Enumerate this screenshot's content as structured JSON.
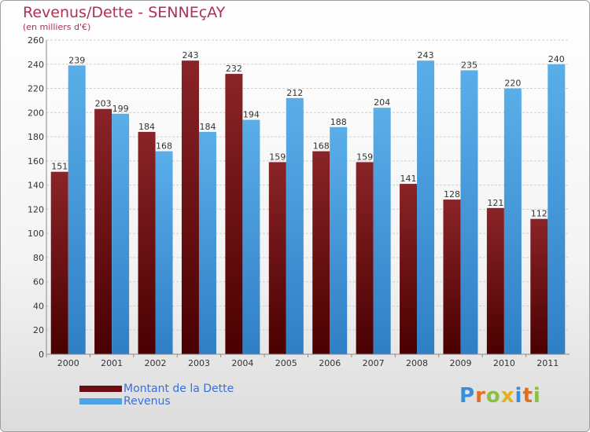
{
  "header": {
    "title": "Revenus/Dette - SENNEçAY",
    "subtitle": "(en milliers d'€)"
  },
  "chart_data": {
    "type": "bar",
    "title": "Revenus/Dette - SENNEçAY",
    "subtitle": "(en milliers d'€)",
    "categories": [
      "2000",
      "2001",
      "2002",
      "2003",
      "2004",
      "2005",
      "2006",
      "2007",
      "2008",
      "2009",
      "2010",
      "2011"
    ],
    "series": [
      {
        "name": "Montant de la Dette",
        "color": "#7a1418",
        "values": [
          151,
          203,
          184,
          243,
          232,
          159,
          168,
          159,
          141,
          128,
          121,
          112
        ]
      },
      {
        "name": "Revenus",
        "color": "#4da3e3",
        "values": [
          239,
          199,
          168,
          184,
          194,
          212,
          188,
          204,
          243,
          235,
          220,
          240
        ]
      }
    ],
    "ylim": [
      0,
      260
    ],
    "yticks": [
      0,
      20,
      40,
      60,
      80,
      100,
      120,
      140,
      160,
      180,
      200,
      220,
      240,
      260
    ],
    "grid": true,
    "legend_position": "bottom-left"
  },
  "legend": {
    "items": [
      {
        "label": "Montant de la Dette",
        "color": "#7a1418"
      },
      {
        "label": "Revenus",
        "color": "#4da3e3"
      }
    ]
  },
  "logo": {
    "text": "Proxiti",
    "letter_colors": [
      "#3a8fd8",
      "#e07020",
      "#8cc040",
      "#e0b020",
      "#3a8fd8",
      "#e07020",
      "#8cc040"
    ]
  }
}
